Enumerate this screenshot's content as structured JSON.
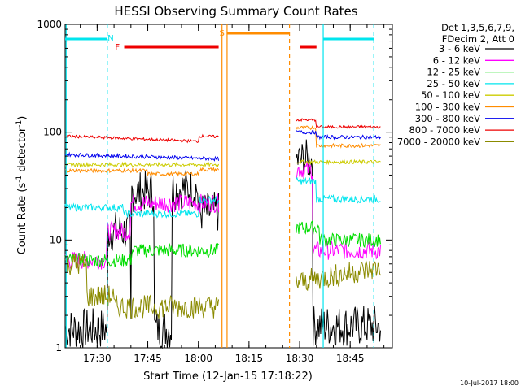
{
  "chart_data": {
    "type": "line",
    "title": "HESSI Observing Summary Count Rates",
    "xlabel": "Start Time (12-Jan-15 17:18:22)",
    "ylabel_main": "Count Rate (s",
    "ylabel_sup1": "-1",
    "ylabel_mid": " detector",
    "ylabel_sup2": "-1",
    "ylabel_end": ")",
    "ylog": true,
    "ylim": [
      1,
      1000
    ],
    "xlim_minutes": [
      17.3,
      18.9
    ],
    "xticks": [
      "17:30",
      "17:45",
      "18:00",
      "18:15",
      "18:30",
      "18:45"
    ],
    "yticks": [
      "1",
      "10",
      "100",
      "1000"
    ],
    "legend_header": [
      "Det 1,3,5,6,7,9,",
      "FDecim 2, Att 0"
    ],
    "legend_position": "right",
    "series": [
      {
        "name": "3 - 6 keV",
        "color": "#000000",
        "values_min_to_max_range": [
          1,
          60
        ]
      },
      {
        "name": "6 - 12 keV",
        "color": "#ff00ff",
        "values_min_to_max_range": [
          6,
          40
        ]
      },
      {
        "name": "12 - 25 keV",
        "color": "#00dd00",
        "values_min_to_max_range": [
          6,
          15
        ]
      },
      {
        "name": "25 - 50 keV",
        "color": "#00e5ee",
        "values_min_to_max_range": [
          16,
          28
        ]
      },
      {
        "name": "50 - 100 keV",
        "color": "#cccc00",
        "values_min_to_max_range": [
          48,
          55
        ]
      },
      {
        "name": "100 - 300 keV",
        "color": "#ff8c00",
        "values_min_to_max_range": [
          40,
          130
        ]
      },
      {
        "name": "300 - 800 keV",
        "color": "#0000ee",
        "values_min_to_max_range": [
          55,
          100
        ]
      },
      {
        "name": "800 - 7000 keV",
        "color": "#ee0000",
        "values_min_to_max_range": [
          75,
          130
        ]
      },
      {
        "name": "7000 - 20000 keV",
        "color": "#8b8b00",
        "values_min_to_max_range": [
          2,
          6
        ]
      }
    ],
    "flags": [
      {
        "label": "N",
        "color": "#00e5ee"
      },
      {
        "label": "F",
        "color": "#ee0000"
      },
      {
        "label": "S",
        "color": "#ff8c00"
      }
    ],
    "footer_date": "10-Jul-2017 18:00"
  }
}
